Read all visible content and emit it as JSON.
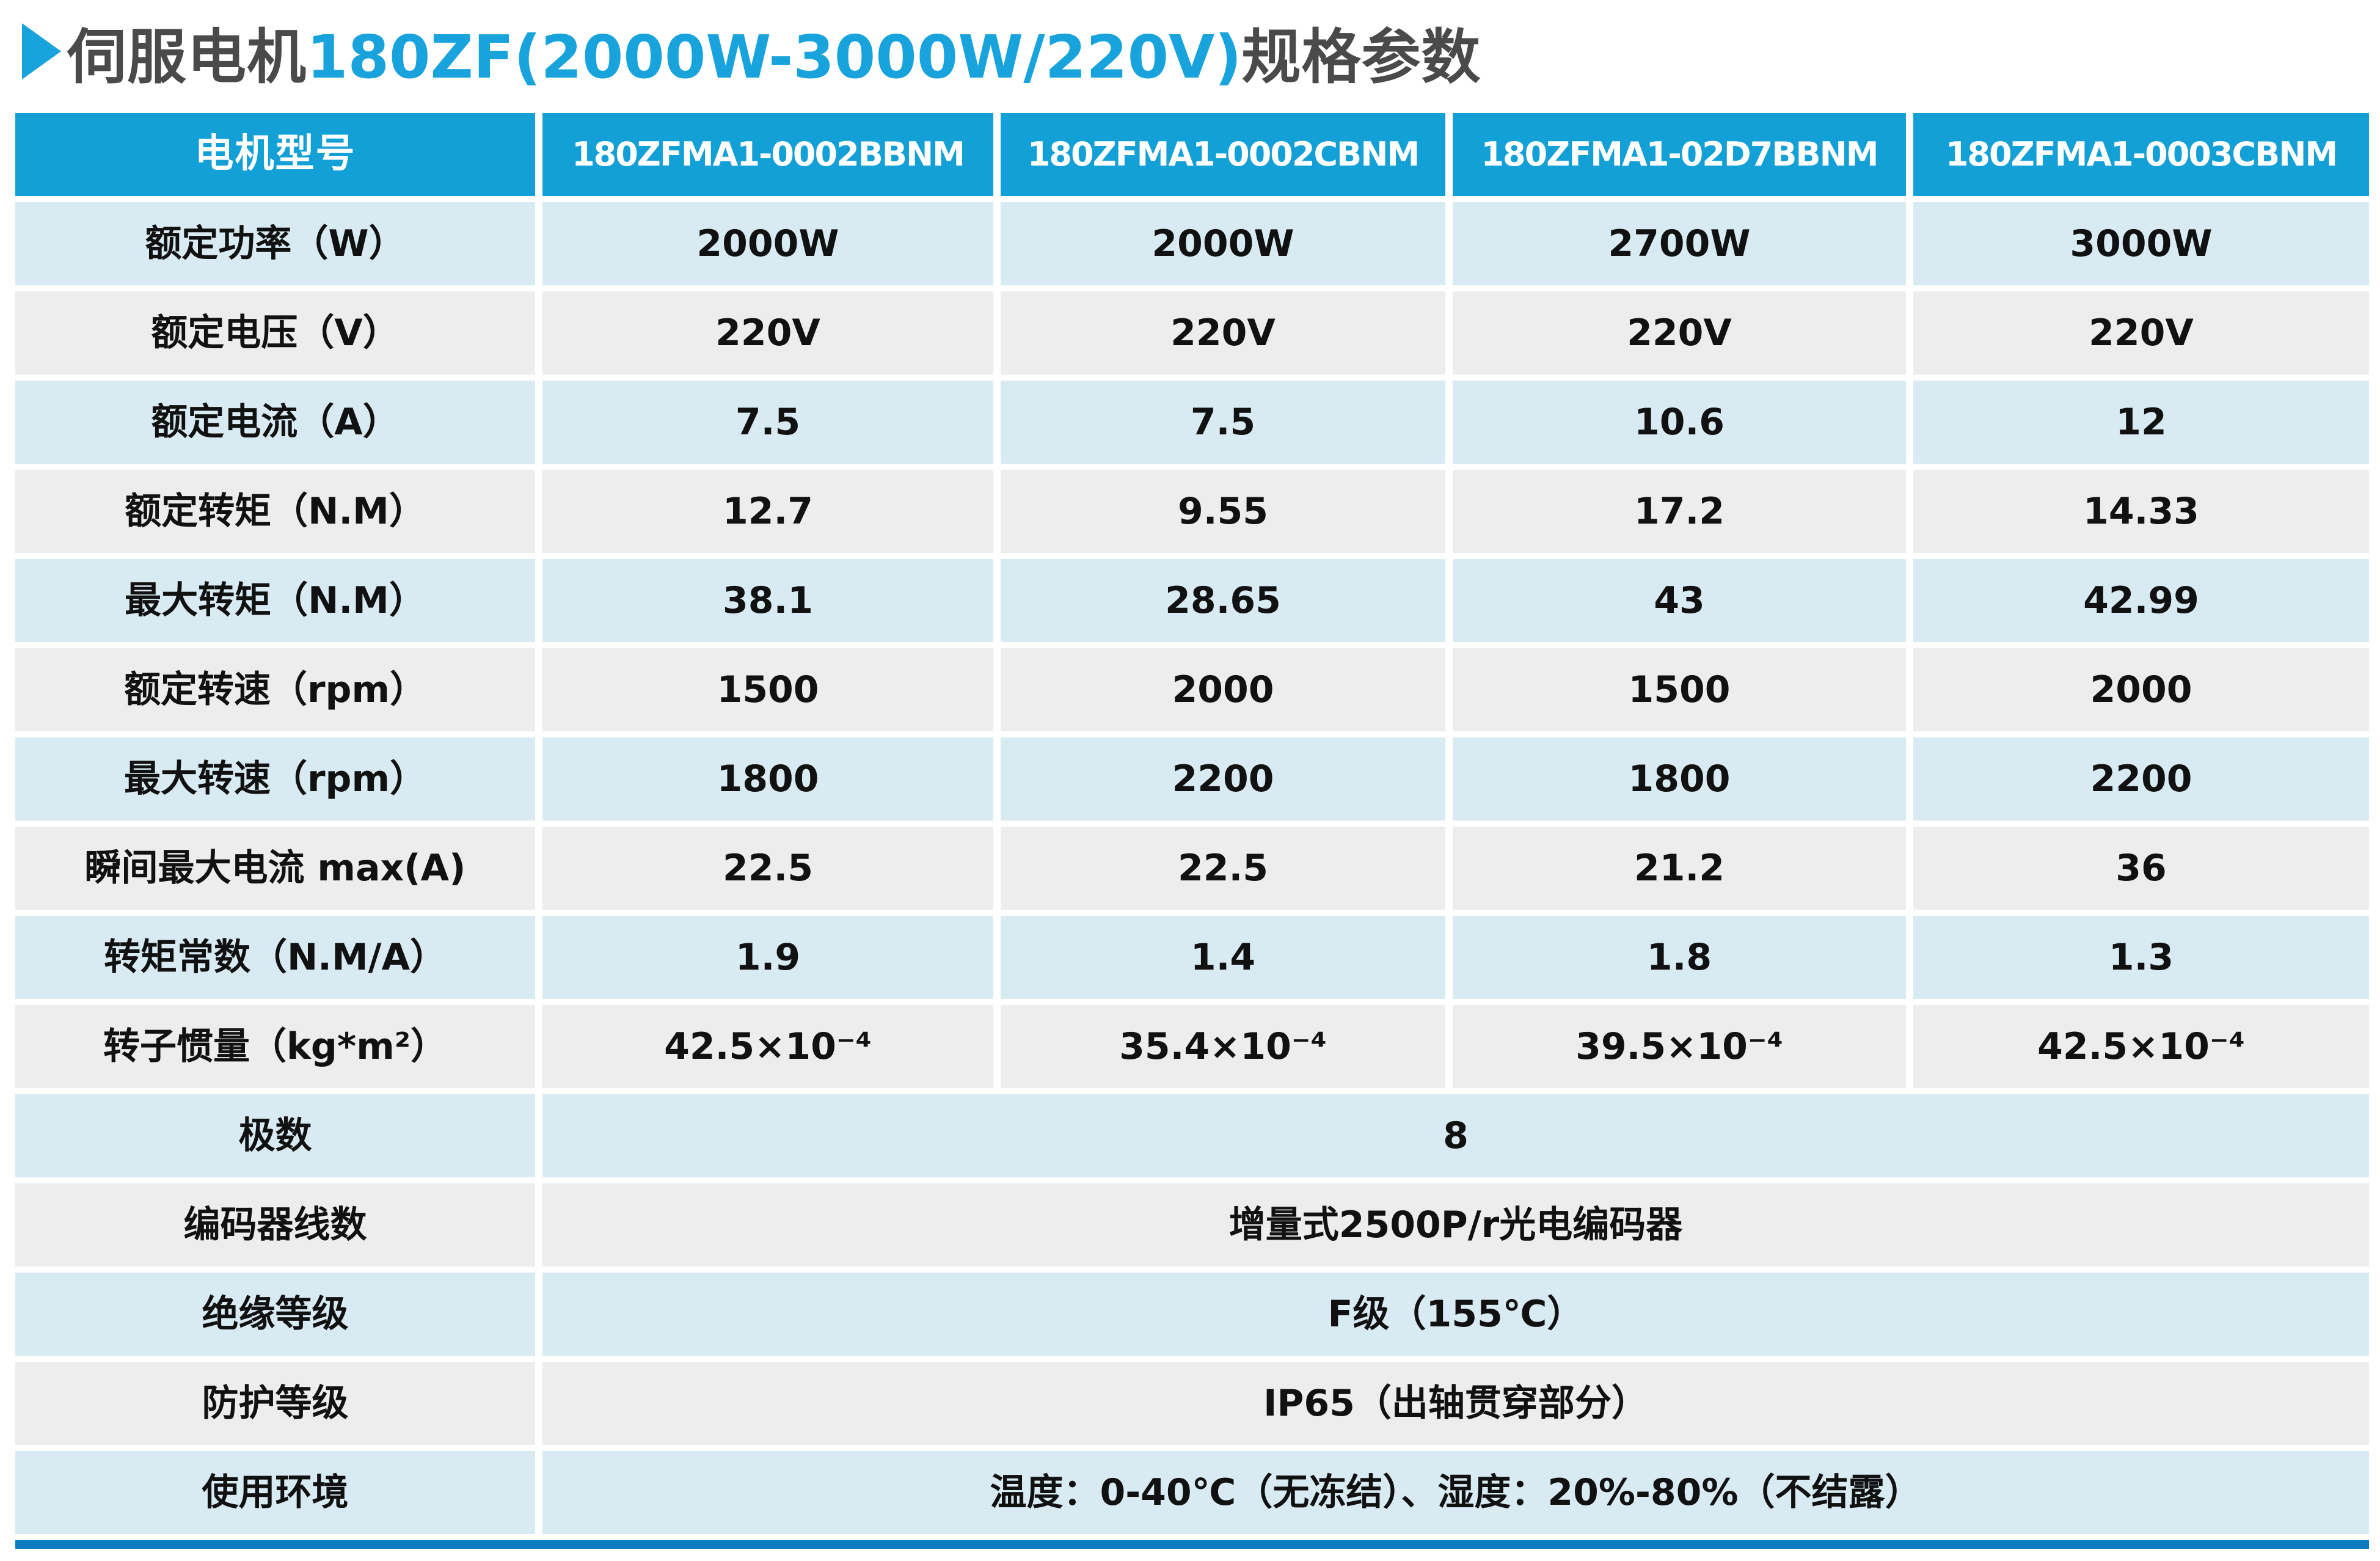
{
  "title": {
    "prefix": "伺服电机",
    "highlight": "180ZF(2000W-3000W/220V)",
    "suffix": "规格参数"
  },
  "table": {
    "header": {
      "label": "电机型号",
      "models": [
        "180ZFMA1-0002BBNM",
        "180ZFMA1-0002CBNM",
        "180ZFMA1-02D7BBNM",
        "180ZFMA1-0003CBNM"
      ]
    },
    "rows": [
      {
        "label": "额定功率（W）",
        "values": [
          "2000W",
          "2000W",
          "2700W",
          "3000W"
        ]
      },
      {
        "label": "额定电压（V）",
        "values": [
          "220V",
          "220V",
          "220V",
          "220V"
        ]
      },
      {
        "label": "额定电流（A）",
        "values": [
          "7.5",
          "7.5",
          "10.6",
          "12"
        ]
      },
      {
        "label": "额定转矩（N.M）",
        "values": [
          "12.7",
          "9.55",
          "17.2",
          "14.33"
        ]
      },
      {
        "label": "最大转矩（N.M）",
        "values": [
          "38.1",
          "28.65",
          "43",
          "42.99"
        ]
      },
      {
        "label": "额定转速（rpm）",
        "values": [
          "1500",
          "2000",
          "1500",
          "2000"
        ]
      },
      {
        "label": "最大转速（rpm）",
        "values": [
          "1800",
          "2200",
          "1800",
          "2200"
        ]
      },
      {
        "label": "瞬间最大电流 max(A)",
        "values": [
          "22.5",
          "22.5",
          "21.2",
          "36"
        ]
      },
      {
        "label": "转矩常数（N.M/A）",
        "values": [
          "1.9",
          "1.4",
          "1.8",
          "1.3"
        ]
      },
      {
        "label": "转子惯量（kg*m²）",
        "values": [
          "42.5×10⁻⁴",
          "35.4×10⁻⁴",
          "39.5×10⁻⁴",
          "42.5×10⁻⁴"
        ]
      }
    ],
    "merged_rows": [
      {
        "label": "极数",
        "value": "8"
      },
      {
        "label": "编码器线数",
        "value": "增量式2500P/r光电编码器"
      },
      {
        "label": "绝缘等级",
        "value": "F级（155℃）"
      },
      {
        "label": "防护等级",
        "value": "IP65（出轴贯穿部分）"
      },
      {
        "label": "使用环境",
        "value": "温度：0-40℃（无冻结）、湿度：20%-80%（不结露）"
      }
    ]
  },
  "colors": {
    "header_blue": "#12a0d6",
    "row_blue": "#d8eaf2",
    "row_gray": "#ededed",
    "bar_blue": "#0a7ac1",
    "title_dark": "#4a4a4a",
    "accent_blue": "#18a3dc",
    "text_dark": "#111111"
  }
}
